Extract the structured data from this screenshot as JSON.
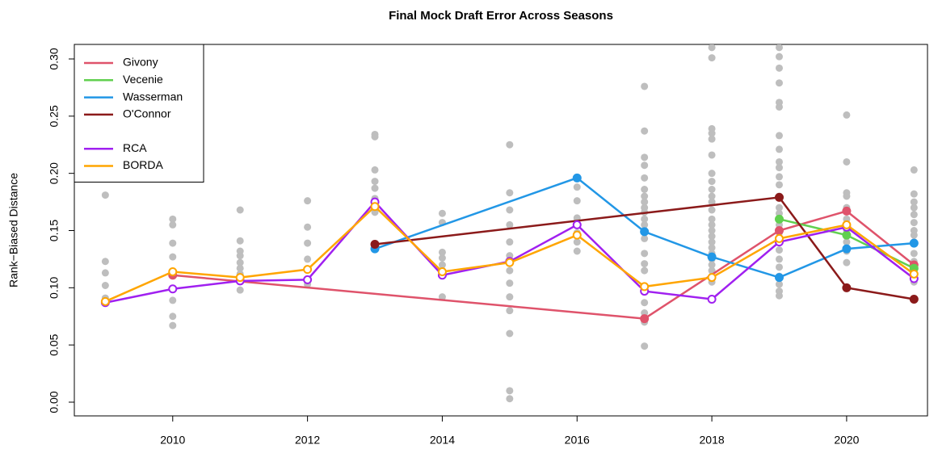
{
  "chart_data": {
    "type": "line",
    "title": "Final Mock Draft Error Across Seasons",
    "y_label": "Rank−Biased Distance",
    "xlim": [
      2008.54,
      2021.2
    ],
    "ylim": [
      -0.012,
      0.3127
    ],
    "xticks": [
      2010,
      2012,
      2014,
      2016,
      2018,
      2020
    ],
    "yticks": [
      {
        "value": 0,
        "label": "0.00"
      },
      {
        "value": 0.05,
        "label": "0.05"
      },
      {
        "value": 0.1,
        "label": "0.10"
      },
      {
        "value": 0.15,
        "label": "0.15"
      },
      {
        "value": 0.2,
        "label": "0.20"
      },
      {
        "value": 0.25,
        "label": "0.25"
      },
      {
        "value": 0.3,
        "label": "0.30"
      }
    ],
    "legend": "top-left",
    "background": {
      "color": "#bebebe",
      "x": [
        2009,
        2010,
        2011,
        2012,
        2013,
        2014,
        2015,
        2016,
        2017,
        2018,
        2019,
        2020,
        2021
      ],
      "values": [
        [
          0.181,
          0.123,
          0.113,
          0.102,
          0.091,
          0.087
        ],
        [
          0.16,
          0.155,
          0.139,
          0.127,
          0.114,
          0.111,
          0.089,
          0.075,
          0.067
        ],
        [
          0.168,
          0.141,
          0.132,
          0.128,
          0.122,
          0.117,
          0.112,
          0.106,
          0.098
        ],
        [
          0.176,
          0.153,
          0.139,
          0.125,
          0.116,
          0.107,
          0.103
        ],
        [
          0.234,
          0.232,
          0.203,
          0.193,
          0.187,
          0.178,
          0.172,
          0.166
        ],
        [
          0.165,
          0.157,
          0.131,
          0.126,
          0.12,
          0.115,
          0.111,
          0.092
        ],
        [
          0.225,
          0.183,
          0.168,
          0.155,
          0.14,
          0.128,
          0.115,
          0.104,
          0.092,
          0.08,
          0.06,
          0.01,
          0.003
        ],
        [
          0.188,
          0.176,
          0.161,
          0.155,
          0.148,
          0.14,
          0.132
        ],
        [
          0.276,
          0.237,
          0.214,
          0.207,
          0.196,
          0.186,
          0.18,
          0.175,
          0.17,
          0.166,
          0.16,
          0.155,
          0.143,
          0.13,
          0.121,
          0.115,
          0.087,
          0.078,
          0.07,
          0.049
        ],
        [
          0.31,
          0.301,
          0.239,
          0.235,
          0.23,
          0.216,
          0.2,
          0.193,
          0.186,
          0.18,
          0.175,
          0.168,
          0.16,
          0.155,
          0.15,
          0.145,
          0.14,
          0.135,
          0.13,
          0.125,
          0.12,
          0.115,
          0.11,
          0.105
        ],
        [
          0.31,
          0.302,
          0.292,
          0.279,
          0.262,
          0.258,
          0.233,
          0.221,
          0.21,
          0.205,
          0.197,
          0.19,
          0.18,
          0.17,
          0.165,
          0.155,
          0.148,
          0.14,
          0.133,
          0.125,
          0.118,
          0.11,
          0.103,
          0.097,
          0.093
        ],
        [
          0.251,
          0.21,
          0.183,
          0.18,
          0.17,
          0.16,
          0.15,
          0.145,
          0.14,
          0.132,
          0.122
        ],
        [
          0.203,
          0.182,
          0.175,
          0.17,
          0.164,
          0.157,
          0.15,
          0.146,
          0.14,
          0.13,
          0.123,
          0.115,
          0.11,
          0.105
        ]
      ]
    },
    "series": [
      {
        "name": "Givony",
        "color": "#df536b",
        "marker": "filled",
        "x": [
          2010,
          2017,
          2019,
          2020,
          2021
        ],
        "values": [
          0.111,
          0.073,
          0.15,
          0.167,
          0.12
        ]
      },
      {
        "name": "Vecenie",
        "color": "#61d04f",
        "marker": "filled",
        "x": [
          2019,
          2020,
          2021
        ],
        "values": [
          0.16,
          0.146,
          0.117
        ]
      },
      {
        "name": "Wasserman",
        "color": "#2297e6",
        "marker": "filled",
        "x": [
          2013,
          2016,
          2017,
          2018,
          2019,
          2020,
          2021
        ],
        "values": [
          0.134,
          0.196,
          0.149,
          0.127,
          0.109,
          0.134,
          0.139
        ]
      },
      {
        "name": "O'Connor",
        "color": "#8b1a1a",
        "marker": "filled",
        "x": [
          2013,
          2019,
          2020,
          2021
        ],
        "values": [
          0.138,
          0.179,
          0.1,
          0.09
        ]
      },
      {
        "name": "RCA",
        "color": "#a020f0",
        "marker": "open",
        "x": [
          2009,
          2010,
          2011,
          2012,
          2013,
          2014,
          2015,
          2016,
          2017,
          2018,
          2019,
          2020,
          2021
        ],
        "values": [
          0.087,
          0.099,
          0.106,
          0.107,
          0.175,
          0.111,
          0.123,
          0.155,
          0.097,
          0.09,
          0.14,
          0.153,
          0.108
        ]
      },
      {
        "name": "BORDA",
        "color": "#ffa500",
        "marker": "open",
        "x": [
          2009,
          2010,
          2011,
          2012,
          2013,
          2014,
          2015,
          2016,
          2017,
          2018,
          2019,
          2020,
          2021
        ],
        "values": [
          0.088,
          0.114,
          0.109,
          0.116,
          0.171,
          0.114,
          0.122,
          0.146,
          0.101,
          0.109,
          0.143,
          0.155,
          0.112
        ]
      }
    ]
  }
}
